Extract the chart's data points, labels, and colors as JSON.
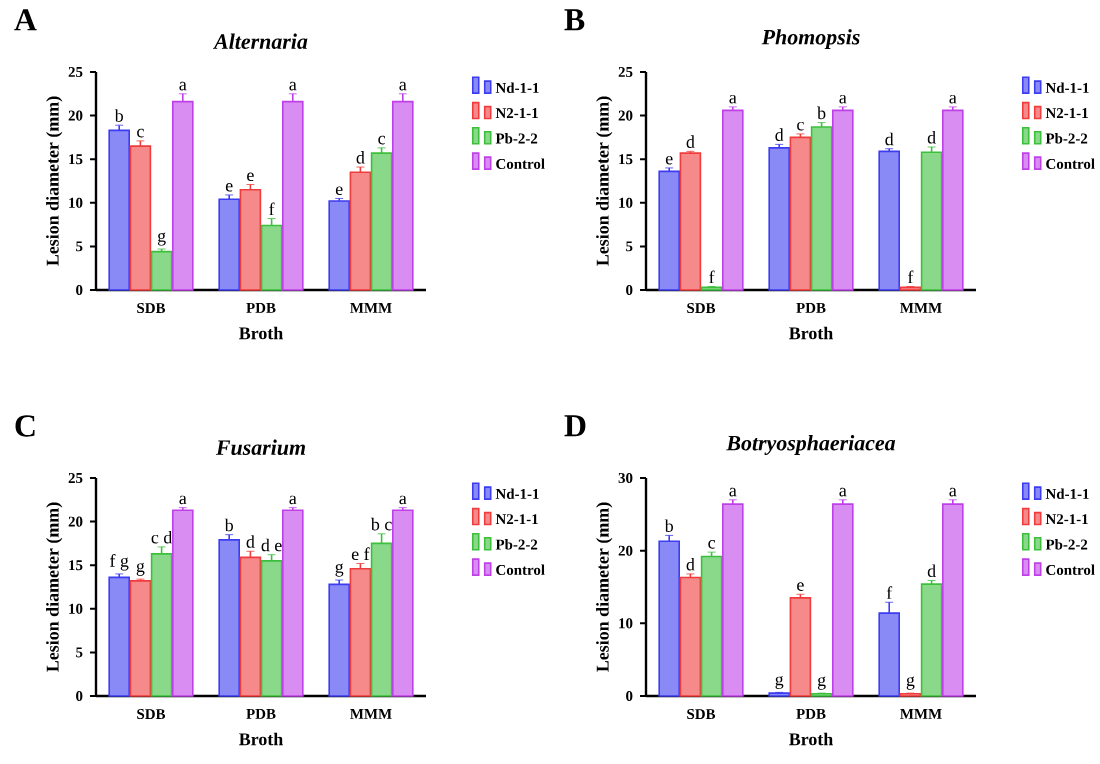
{
  "chart_data": [
    {
      "type": "bar",
      "title": "Alternaria",
      "xlabel": "Broth",
      "ylabel": "Lesion diameter (mm)",
      "annotations": [
        "A"
      ],
      "categories": [
        "SDB",
        "PDB",
        "MMM"
      ],
      "ylim": [
        0,
        25
      ],
      "yticks": [
        0,
        5,
        10,
        15,
        20,
        25
      ],
      "legend": "right",
      "series": [
        {
          "name": "Nd-1-1",
          "color": "#3c3cf0",
          "values": [
            18.3,
            10.4,
            10.2
          ],
          "errors": [
            0.6,
            0.5,
            0.3
          ],
          "value_labels": [
            "b",
            "e",
            "e"
          ]
        },
        {
          "name": "N2-1-1",
          "color": "#f03c3c",
          "values": [
            16.5,
            11.5,
            13.5
          ],
          "errors": [
            0.6,
            0.6,
            0.6
          ],
          "value_labels": [
            "c",
            "e",
            "d"
          ]
        },
        {
          "name": "Pb-2-2",
          "color": "#3cc03c",
          "values": [
            4.4,
            7.4,
            15.7
          ],
          "errors": [
            0.3,
            0.8,
            0.6
          ],
          "value_labels": [
            "g",
            "f",
            "c"
          ]
        },
        {
          "name": "Control",
          "color": "#c040e8",
          "values": [
            21.6,
            21.6,
            21.6
          ],
          "errors": [
            0.9,
            0.9,
            0.9
          ],
          "value_labels": [
            "a",
            "a",
            "a"
          ]
        }
      ]
    },
    {
      "type": "bar",
      "title": "Phomopsis",
      "xlabel": "Broth",
      "ylabel": "Lesion diameter (mm)",
      "annotations": [
        "B"
      ],
      "categories": [
        "SDB",
        "PDB",
        "MMM"
      ],
      "ylim": [
        0,
        25
      ],
      "yticks": [
        0,
        5,
        10,
        15,
        20,
        25
      ],
      "legend": "right",
      "series": [
        {
          "name": "Nd-1-1",
          "color": "#3c3cf0",
          "values": [
            13.6,
            16.3,
            15.9
          ],
          "errors": [
            0.4,
            0.4,
            0.3
          ],
          "value_labels": [
            "e",
            "d",
            "d"
          ]
        },
        {
          "name": "N2-1-1",
          "color": "#f03c3c",
          "values": [
            15.7,
            17.5,
            0.3
          ],
          "errors": [
            0.2,
            0.4,
            0.1
          ],
          "value_labels": [
            "d",
            "c",
            "f"
          ]
        },
        {
          "name": "Pb-2-2",
          "color": "#3cc03c",
          "values": [
            0.3,
            18.7,
            15.8
          ],
          "errors": [
            0.1,
            0.5,
            0.6
          ],
          "value_labels": [
            "f",
            "b",
            "d"
          ]
        },
        {
          "name": "Control",
          "color": "#c040e8",
          "values": [
            20.6,
            20.6,
            20.6
          ],
          "errors": [
            0.4,
            0.4,
            0.4
          ],
          "value_labels": [
            "a",
            "a",
            "a"
          ]
        }
      ]
    },
    {
      "type": "bar",
      "title": "Fusarium",
      "xlabel": "Broth",
      "ylabel": "Lesion diameter (mm)",
      "annotations": [
        "C"
      ],
      "categories": [
        "SDB",
        "PDB",
        "MMM"
      ],
      "ylim": [
        0,
        25
      ],
      "yticks": [
        0,
        5,
        10,
        15,
        20,
        25
      ],
      "legend": "right",
      "series": [
        {
          "name": "Nd-1-1",
          "color": "#3c3cf0",
          "values": [
            13.6,
            17.9,
            12.8
          ],
          "errors": [
            0.4,
            0.6,
            0.5
          ],
          "value_labels": [
            "f g",
            "b",
            "g"
          ]
        },
        {
          "name": "N2-1-1",
          "color": "#f03c3c",
          "values": [
            13.2,
            15.9,
            14.6
          ],
          "errors": [
            0.2,
            0.7,
            0.6
          ],
          "value_labels": [
            "g",
            "d",
            "e f"
          ]
        },
        {
          "name": "Pb-2-2",
          "color": "#3cc03c",
          "values": [
            16.3,
            15.5,
            17.5
          ],
          "errors": [
            0.8,
            0.7,
            1.1
          ],
          "value_labels": [
            "c d",
            "d e",
            "b c"
          ]
        },
        {
          "name": "Control",
          "color": "#c040e8",
          "values": [
            21.3,
            21.3,
            21.3
          ],
          "errors": [
            0.3,
            0.3,
            0.3
          ],
          "value_labels": [
            "a",
            "a",
            "a"
          ]
        }
      ]
    },
    {
      "type": "bar",
      "title": "Botryosphaeriacea",
      "xlabel": "Broth",
      "ylabel": "Lesion diameter (mm)",
      "annotations": [
        "D"
      ],
      "categories": [
        "SDB",
        "PDB",
        "MMM"
      ],
      "ylim": [
        0,
        30
      ],
      "yticks": [
        0,
        10,
        20,
        30
      ],
      "legend": "right",
      "series": [
        {
          "name": "Nd-1-1",
          "color": "#3c3cf0",
          "values": [
            21.3,
            0.4,
            11.4
          ],
          "errors": [
            0.8,
            0.1,
            1.5
          ],
          "value_labels": [
            "b",
            "g",
            "f"
          ]
        },
        {
          "name": "N2-1-1",
          "color": "#f03c3c",
          "values": [
            16.3,
            13.5,
            0.3
          ],
          "errors": [
            0.5,
            0.5,
            0.1
          ],
          "value_labels": [
            "d",
            "e",
            "g"
          ]
        },
        {
          "name": "Pb-2-2",
          "color": "#3cc03c",
          "values": [
            19.2,
            0.3,
            15.4
          ],
          "errors": [
            0.6,
            0.1,
            0.5
          ],
          "value_labels": [
            "c",
            "g",
            "d"
          ]
        },
        {
          "name": "Control",
          "color": "#c040e8",
          "values": [
            26.4,
            26.4,
            26.4
          ],
          "errors": [
            0.6,
            0.6,
            0.6
          ],
          "value_labels": [
            "a",
            "a",
            "a"
          ]
        }
      ]
    }
  ]
}
